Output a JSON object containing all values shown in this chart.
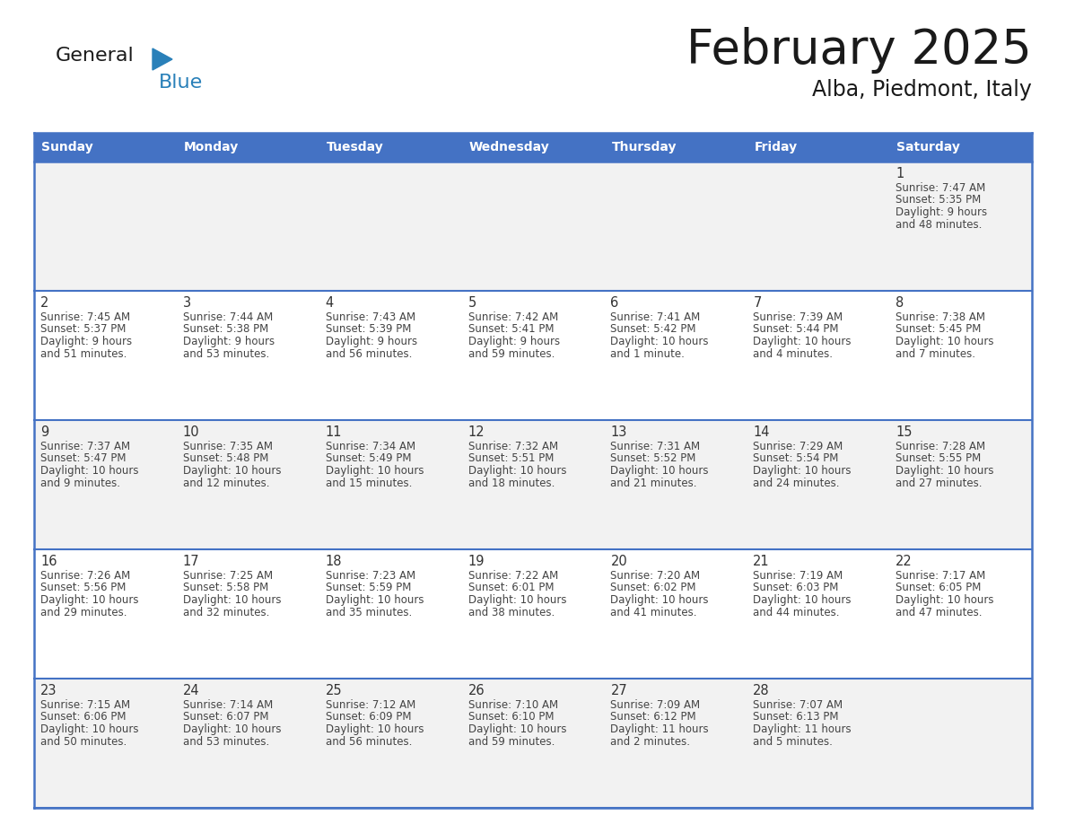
{
  "title": "February 2025",
  "subtitle": "Alba, Piedmont, Italy",
  "days_of_week": [
    "Sunday",
    "Monday",
    "Tuesday",
    "Wednesday",
    "Thursday",
    "Friday",
    "Saturday"
  ],
  "header_bg": "#4472C4",
  "header_text": "#FFFFFF",
  "cell_bg_odd": "#F2F2F2",
  "cell_bg_even": "#FFFFFF",
  "border_color": "#4472C4",
  "text_color": "#444444",
  "day_num_color": "#333333",
  "logo_general_color": "#1a1a1a",
  "logo_blue_color": "#2980B9",
  "triangle_color": "#2980B9",
  "calendar": [
    [
      null,
      null,
      null,
      null,
      null,
      null,
      {
        "day": 1,
        "sunrise": "7:47 AM",
        "sunset": "5:35 PM",
        "daylight": "9 hours",
        "daylight2": "and 48 minutes."
      }
    ],
    [
      {
        "day": 2,
        "sunrise": "7:45 AM",
        "sunset": "5:37 PM",
        "daylight": "9 hours",
        "daylight2": "and 51 minutes."
      },
      {
        "day": 3,
        "sunrise": "7:44 AM",
        "sunset": "5:38 PM",
        "daylight": "9 hours",
        "daylight2": "and 53 minutes."
      },
      {
        "day": 4,
        "sunrise": "7:43 AM",
        "sunset": "5:39 PM",
        "daylight": "9 hours",
        "daylight2": "and 56 minutes."
      },
      {
        "day": 5,
        "sunrise": "7:42 AM",
        "sunset": "5:41 PM",
        "daylight": "9 hours",
        "daylight2": "and 59 minutes."
      },
      {
        "day": 6,
        "sunrise": "7:41 AM",
        "sunset": "5:42 PM",
        "daylight": "10 hours",
        "daylight2": "and 1 minute."
      },
      {
        "day": 7,
        "sunrise": "7:39 AM",
        "sunset": "5:44 PM",
        "daylight": "10 hours",
        "daylight2": "and 4 minutes."
      },
      {
        "day": 8,
        "sunrise": "7:38 AM",
        "sunset": "5:45 PM",
        "daylight": "10 hours",
        "daylight2": "and 7 minutes."
      }
    ],
    [
      {
        "day": 9,
        "sunrise": "7:37 AM",
        "sunset": "5:47 PM",
        "daylight": "10 hours",
        "daylight2": "and 9 minutes."
      },
      {
        "day": 10,
        "sunrise": "7:35 AM",
        "sunset": "5:48 PM",
        "daylight": "10 hours",
        "daylight2": "and 12 minutes."
      },
      {
        "day": 11,
        "sunrise": "7:34 AM",
        "sunset": "5:49 PM",
        "daylight": "10 hours",
        "daylight2": "and 15 minutes."
      },
      {
        "day": 12,
        "sunrise": "7:32 AM",
        "sunset": "5:51 PM",
        "daylight": "10 hours",
        "daylight2": "and 18 minutes."
      },
      {
        "day": 13,
        "sunrise": "7:31 AM",
        "sunset": "5:52 PM",
        "daylight": "10 hours",
        "daylight2": "and 21 minutes."
      },
      {
        "day": 14,
        "sunrise": "7:29 AM",
        "sunset": "5:54 PM",
        "daylight": "10 hours",
        "daylight2": "and 24 minutes."
      },
      {
        "day": 15,
        "sunrise": "7:28 AM",
        "sunset": "5:55 PM",
        "daylight": "10 hours",
        "daylight2": "and 27 minutes."
      }
    ],
    [
      {
        "day": 16,
        "sunrise": "7:26 AM",
        "sunset": "5:56 PM",
        "daylight": "10 hours",
        "daylight2": "and 29 minutes."
      },
      {
        "day": 17,
        "sunrise": "7:25 AM",
        "sunset": "5:58 PM",
        "daylight": "10 hours",
        "daylight2": "and 32 minutes."
      },
      {
        "day": 18,
        "sunrise": "7:23 AM",
        "sunset": "5:59 PM",
        "daylight": "10 hours",
        "daylight2": "and 35 minutes."
      },
      {
        "day": 19,
        "sunrise": "7:22 AM",
        "sunset": "6:01 PM",
        "daylight": "10 hours",
        "daylight2": "and 38 minutes."
      },
      {
        "day": 20,
        "sunrise": "7:20 AM",
        "sunset": "6:02 PM",
        "daylight": "10 hours",
        "daylight2": "and 41 minutes."
      },
      {
        "day": 21,
        "sunrise": "7:19 AM",
        "sunset": "6:03 PM",
        "daylight": "10 hours",
        "daylight2": "and 44 minutes."
      },
      {
        "day": 22,
        "sunrise": "7:17 AM",
        "sunset": "6:05 PM",
        "daylight": "10 hours",
        "daylight2": "and 47 minutes."
      }
    ],
    [
      {
        "day": 23,
        "sunrise": "7:15 AM",
        "sunset": "6:06 PM",
        "daylight": "10 hours",
        "daylight2": "and 50 minutes."
      },
      {
        "day": 24,
        "sunrise": "7:14 AM",
        "sunset": "6:07 PM",
        "daylight": "10 hours",
        "daylight2": "and 53 minutes."
      },
      {
        "day": 25,
        "sunrise": "7:12 AM",
        "sunset": "6:09 PM",
        "daylight": "10 hours",
        "daylight2": "and 56 minutes."
      },
      {
        "day": 26,
        "sunrise": "7:10 AM",
        "sunset": "6:10 PM",
        "daylight": "10 hours",
        "daylight2": "and 59 minutes."
      },
      {
        "day": 27,
        "sunrise": "7:09 AM",
        "sunset": "6:12 PM",
        "daylight": "11 hours",
        "daylight2": "and 2 minutes."
      },
      {
        "day": 28,
        "sunrise": "7:07 AM",
        "sunset": "6:13 PM",
        "daylight": "11 hours",
        "daylight2": "and 5 minutes."
      },
      null
    ]
  ]
}
